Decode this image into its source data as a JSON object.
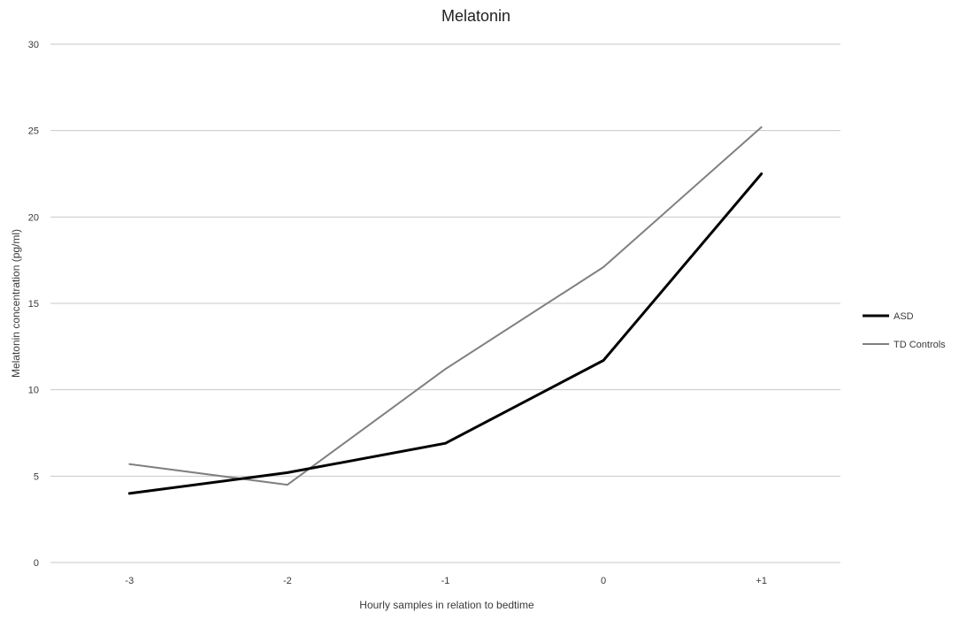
{
  "chart_data": {
    "type": "line",
    "title": "Melatonin",
    "xlabel": "Hourly samples in relation to bedtime",
    "ylabel": "Melatonin concentration  (pg/ml)",
    "categories": [
      "-3",
      "-2",
      "-1",
      "0",
      "+1"
    ],
    "ylim": [
      0,
      30
    ],
    "yticks": [
      "0",
      "5",
      "10",
      "15",
      "20",
      "25",
      "30"
    ],
    "grid": true,
    "legend_position": "right",
    "series": [
      {
        "name": "ASD",
        "values": [
          4.0,
          5.2,
          6.9,
          11.7,
          22.5
        ],
        "color": "#000000"
      },
      {
        "name": "TD Controls",
        "values": [
          5.7,
          4.5,
          11.2,
          17.1,
          25.2
        ],
        "color": "#808080"
      }
    ]
  }
}
